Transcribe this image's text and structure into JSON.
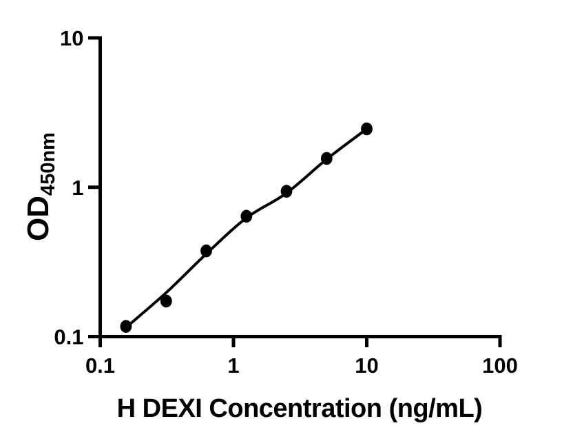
{
  "figure": {
    "background": "#ffffff",
    "colors": {
      "axis": "#000000",
      "tick": "#000000",
      "marker": "#000000",
      "fit_line": "#000000",
      "text": "#000000"
    }
  },
  "chart_data": {
    "type": "scatter",
    "title": "",
    "xlabel": "H DEXI Concentration (ng/mL)",
    "ylabel": "OD450nm",
    "ylabel_main": "OD",
    "ylabel_sub": "450nm",
    "x_scale": "log",
    "y_scale": "log",
    "xlim": [
      0.1,
      100
    ],
    "ylim": [
      0.1,
      10
    ],
    "x_ticks": [
      0.1,
      1,
      10,
      100
    ],
    "x_tick_labels": [
      "0.1",
      "1",
      "10",
      "100"
    ],
    "y_ticks": [
      0.1,
      1,
      10
    ],
    "y_tick_labels": [
      "0.1",
      "1",
      "10"
    ],
    "grid": false,
    "legend": false,
    "series": [
      {
        "name": "fit-line",
        "type": "line",
        "x": [
          0.156,
          0.3125,
          0.625,
          1.25,
          2.5,
          5,
          10
        ],
        "y": [
          0.115,
          0.197,
          0.358,
          0.623,
          0.914,
          1.54,
          2.46
        ]
      },
      {
        "name": "standard-points",
        "type": "scatter",
        "x": [
          0.156,
          0.3125,
          0.625,
          1.25,
          2.5,
          5,
          10
        ],
        "y": [
          0.117,
          0.173,
          0.375,
          0.64,
          0.94,
          1.56,
          2.46
        ]
      }
    ]
  }
}
